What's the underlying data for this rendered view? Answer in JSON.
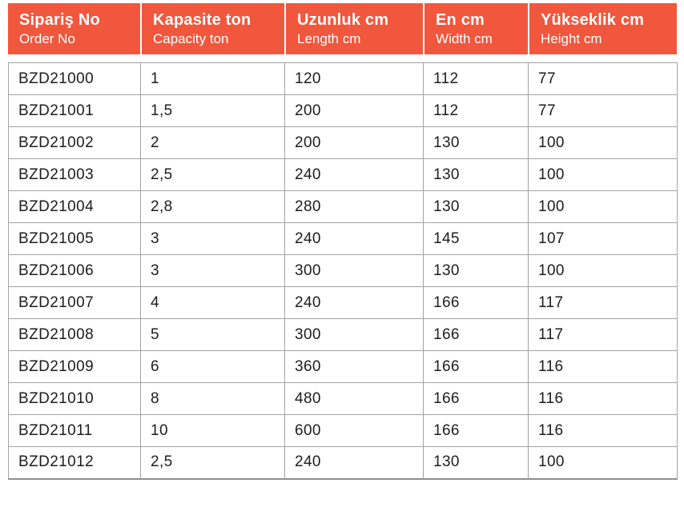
{
  "table": {
    "columns": [
      {
        "title": "Sipariş No",
        "subtitle": "Order No"
      },
      {
        "title": "Kapasite ton",
        "subtitle": "Capacity ton"
      },
      {
        "title": "Uzunluk cm",
        "subtitle": "Length cm"
      },
      {
        "title": "En cm",
        "subtitle": "Width cm"
      },
      {
        "title": "Yükseklik cm",
        "subtitle": "Height cm"
      }
    ],
    "rows": [
      [
        "BZD21000",
        "1",
        "120",
        "112",
        "77"
      ],
      [
        "BZD21001",
        "1,5",
        "200",
        "112",
        "77"
      ],
      [
        "BZD21002",
        "2",
        "200",
        "130",
        "100"
      ],
      [
        "BZD21003",
        "2,5",
        "240",
        "130",
        "100"
      ],
      [
        "BZD21004",
        "2,8",
        "280",
        "130",
        "100"
      ],
      [
        "BZD21005",
        "3",
        "240",
        "145",
        "107"
      ],
      [
        "BZD21006",
        "3",
        "300",
        "130",
        "100"
      ],
      [
        "BZD21007",
        "4",
        "240",
        "166",
        "117"
      ],
      [
        "BZD21008",
        "5",
        "300",
        "166",
        "117"
      ],
      [
        "BZD21009",
        "6",
        "360",
        "166",
        "116"
      ],
      [
        "BZD21010",
        "8",
        "480",
        "166",
        "116"
      ],
      [
        "BZD21011",
        "10",
        "600",
        "166",
        "116"
      ],
      [
        "BZD21012",
        "2,5",
        "240",
        "130",
        "100"
      ]
    ]
  },
  "colors": {
    "header_bg": "#F1573D",
    "header_text": "#FFFFFF",
    "outer_border": "#8F8F8F",
    "inner_border": "#A3A3A3",
    "body_text": "#1D1D1B"
  }
}
